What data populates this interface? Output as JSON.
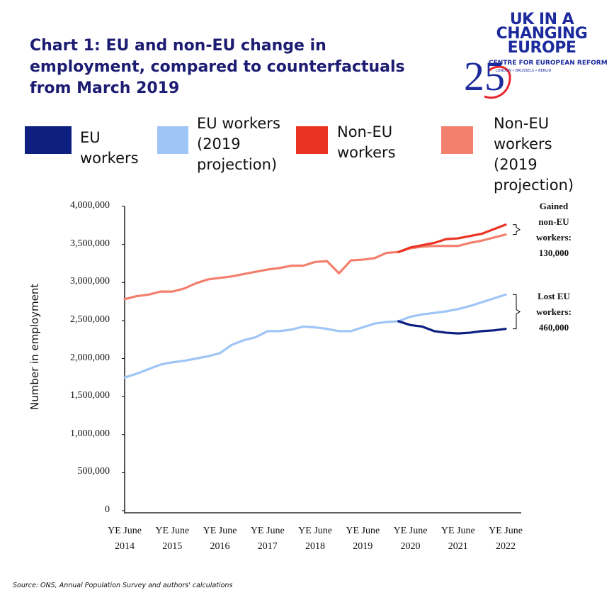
{
  "chart_data": {
    "type": "line",
    "title": "Chart 1: EU and non-EU change in employment, compared to counterfactuals from March 2019",
    "y_label": "Number in employment",
    "source": "Source: ONS, Annual Population Survey and authors' calculations",
    "logo": {
      "name": "UK IN A CHANGING EUROPE",
      "partner": "CENTRE FOR EUROPEAN REFORM",
      "cities": "LONDON • BRUSSELS • BERLIN",
      "badge": "25"
    },
    "categories": [
      "YE June 2014",
      null,
      null,
      null,
      "YE June 2015",
      null,
      null,
      null,
      "YE June 2016",
      null,
      null,
      null,
      "YE June 2017",
      null,
      null,
      null,
      "YE June 2018",
      null,
      null,
      null,
      "YE June 2019",
      null,
      null,
      null,
      "YE June 2020",
      null,
      null,
      null,
      "YE June 2021",
      null,
      null,
      null,
      "YE June 2022"
    ],
    "series": [
      {
        "name": "EU workers",
        "color": "#0d2080",
        "values": [
          null,
          null,
          null,
          null,
          null,
          null,
          null,
          null,
          null,
          null,
          null,
          null,
          null,
          null,
          null,
          null,
          null,
          null,
          null,
          null,
          null,
          null,
          null,
          2490000,
          2440000,
          2420000,
          2360000,
          2340000,
          2330000,
          2340000,
          2360000,
          2370000,
          2390000
        ]
      },
      {
        "name": "EU workers (2019 projection)",
        "color": "#9ec5f5",
        "values": [
          1750000,
          1800000,
          1860000,
          1920000,
          1950000,
          1970000,
          2000000,
          2030000,
          2070000,
          2180000,
          2240000,
          2280000,
          2360000,
          2360000,
          2380000,
          2420000,
          2410000,
          2390000,
          2360000,
          2360000,
          2410000,
          2460000,
          2480000,
          2490000,
          2550000,
          2580000,
          2600000,
          2620000,
          2650000,
          2690000,
          2740000,
          2790000,
          2840000
        ]
      },
      {
        "name": "Non-EU workers",
        "color": "#ea3323",
        "values": [
          null,
          null,
          null,
          null,
          null,
          null,
          null,
          null,
          null,
          null,
          null,
          null,
          null,
          null,
          null,
          null,
          null,
          null,
          null,
          null,
          null,
          null,
          null,
          3400000,
          3460000,
          3490000,
          3520000,
          3570000,
          3580000,
          3610000,
          3640000,
          3700000,
          3760000
        ]
      },
      {
        "name": "Non-EU workers (2019 projection)",
        "color": "#f37f6d",
        "values": [
          2780000,
          2820000,
          2840000,
          2880000,
          2880000,
          2920000,
          2990000,
          3040000,
          3060000,
          3080000,
          3110000,
          3140000,
          3170000,
          3190000,
          3220000,
          3220000,
          3270000,
          3280000,
          3120000,
          3290000,
          3300000,
          3320000,
          3390000,
          3400000,
          3450000,
          3470000,
          3480000,
          3480000,
          3480000,
          3520000,
          3550000,
          3590000,
          3630000
        ]
      }
    ],
    "ylim": [
      0,
      4000000
    ],
    "yticks": [
      0,
      {
        "value": 500000,
        "label": "500,000"
      },
      {
        "value": 1000000,
        "label": "1,000,000"
      },
      {
        "value": 1500000,
        "label": "1,500,000"
      },
      {
        "value": 2000000,
        "label": "2,000,000"
      },
      {
        "value": 2500000,
        "label": "2,500,000"
      },
      {
        "value": 3000000,
        "label": "3,000,000"
      },
      {
        "value": 3500000,
        "label": "3,500,000"
      },
      {
        "value": 4000000,
        "label": "4,000,000"
      }
    ],
    "grid": false,
    "annotations": [
      {
        "lines": [
          "Gained",
          "non-EU",
          "workers:",
          "130,000"
        ],
        "from_series": 2,
        "to_series": 3
      },
      {
        "lines": [
          "Lost EU",
          "workers:",
          "460,000"
        ],
        "from_series": 1,
        "to_series": 0
      }
    ]
  }
}
